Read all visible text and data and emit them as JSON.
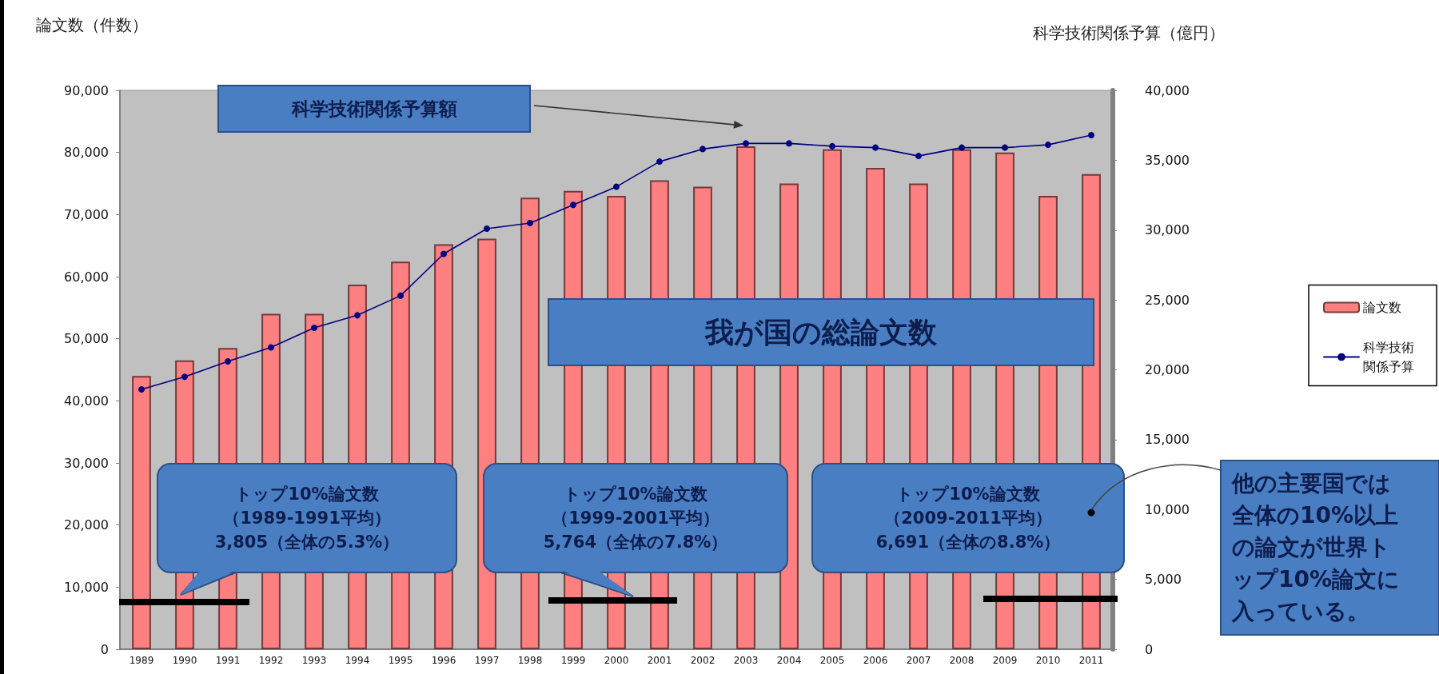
{
  "chart_data": {
    "type": "bar",
    "ylabel": "論文数（件数）",
    "y2label": "科学技術関係予算（億円）",
    "categories": [
      "1989",
      "1990",
      "1991",
      "1992",
      "1993",
      "1994",
      "1995",
      "1996",
      "1997",
      "1998",
      "1999",
      "2000",
      "2001",
      "2002",
      "2003",
      "2004",
      "2005",
      "2006",
      "2007",
      "2008",
      "2009",
      "2010",
      "2011"
    ],
    "series": [
      {
        "name": "論文数",
        "color": "#ff8080",
        "values": [
          44000,
          46500,
          48500,
          54000,
          54000,
          58700,
          62400,
          65200,
          66100,
          72700,
          73800,
          73000,
          75500,
          74500,
          81000,
          75000,
          80500,
          77500,
          75000,
          80500,
          80000,
          73000,
          76500
        ]
      },
      {
        "name": "科学技術関係予算",
        "type": "line",
        "axis": "y2",
        "color": "#000080",
        "values": [
          18600,
          19500,
          20600,
          21600,
          23000,
          23900,
          25300,
          28300,
          30100,
          30500,
          31800,
          33100,
          34900,
          35800,
          36200,
          36200,
          36000,
          35900,
          35300,
          35900,
          35900,
          36100,
          36800
        ]
      }
    ],
    "ylim": [
      0,
      90000
    ],
    "yticks": [
      0,
      {
        "value": 10000,
        "label": "10,000"
      },
      {
        "value": 20000,
        "label": "20,000"
      },
      {
        "value": 30000,
        "label": "30,000"
      },
      {
        "value": 40000,
        "label": "40,000"
      },
      {
        "value": 50000,
        "label": "50,000"
      },
      {
        "value": 60000,
        "label": "60,000"
      },
      {
        "value": 70000,
        "label": "70,000"
      },
      {
        "value": 80000,
        "label": "80,000"
      },
      {
        "value": 90000,
        "label": "90,000"
      }
    ],
    "y2lim": [
      0,
      40000
    ],
    "y2ticks": [
      0,
      {
        "value": 5000,
        "label": "5,000"
      },
      {
        "value": 10000,
        "label": "10,000"
      },
      {
        "value": 15000,
        "label": "15,000"
      },
      {
        "value": 20000,
        "label": "20,000"
      },
      {
        "value": 25000,
        "label": "25,000"
      },
      {
        "value": 30000,
        "label": "30,000"
      },
      {
        "value": 35000,
        "label": "35,000"
      },
      {
        "value": 40000,
        "label": "40,000"
      }
    ],
    "legend": "right",
    "marker": "circle",
    "annotations": [
      "科学技術関係予算額",
      "我が国の総論文数",
      "トップ10%論文数（1989-1991平均）3,805（全体の5.3%）",
      "トップ10%論文数（1999-2001平均）5,764（全体の7.8%）",
      "トップ10%論文数（2009-2011平均）6,691（全体の8.8%）",
      {
        "text": "他の主要国では全体の10%以上の論文が世界トップ10%論文に入っている。",
        "x": "2011",
        "y": 22000
      }
    ]
  }
}
